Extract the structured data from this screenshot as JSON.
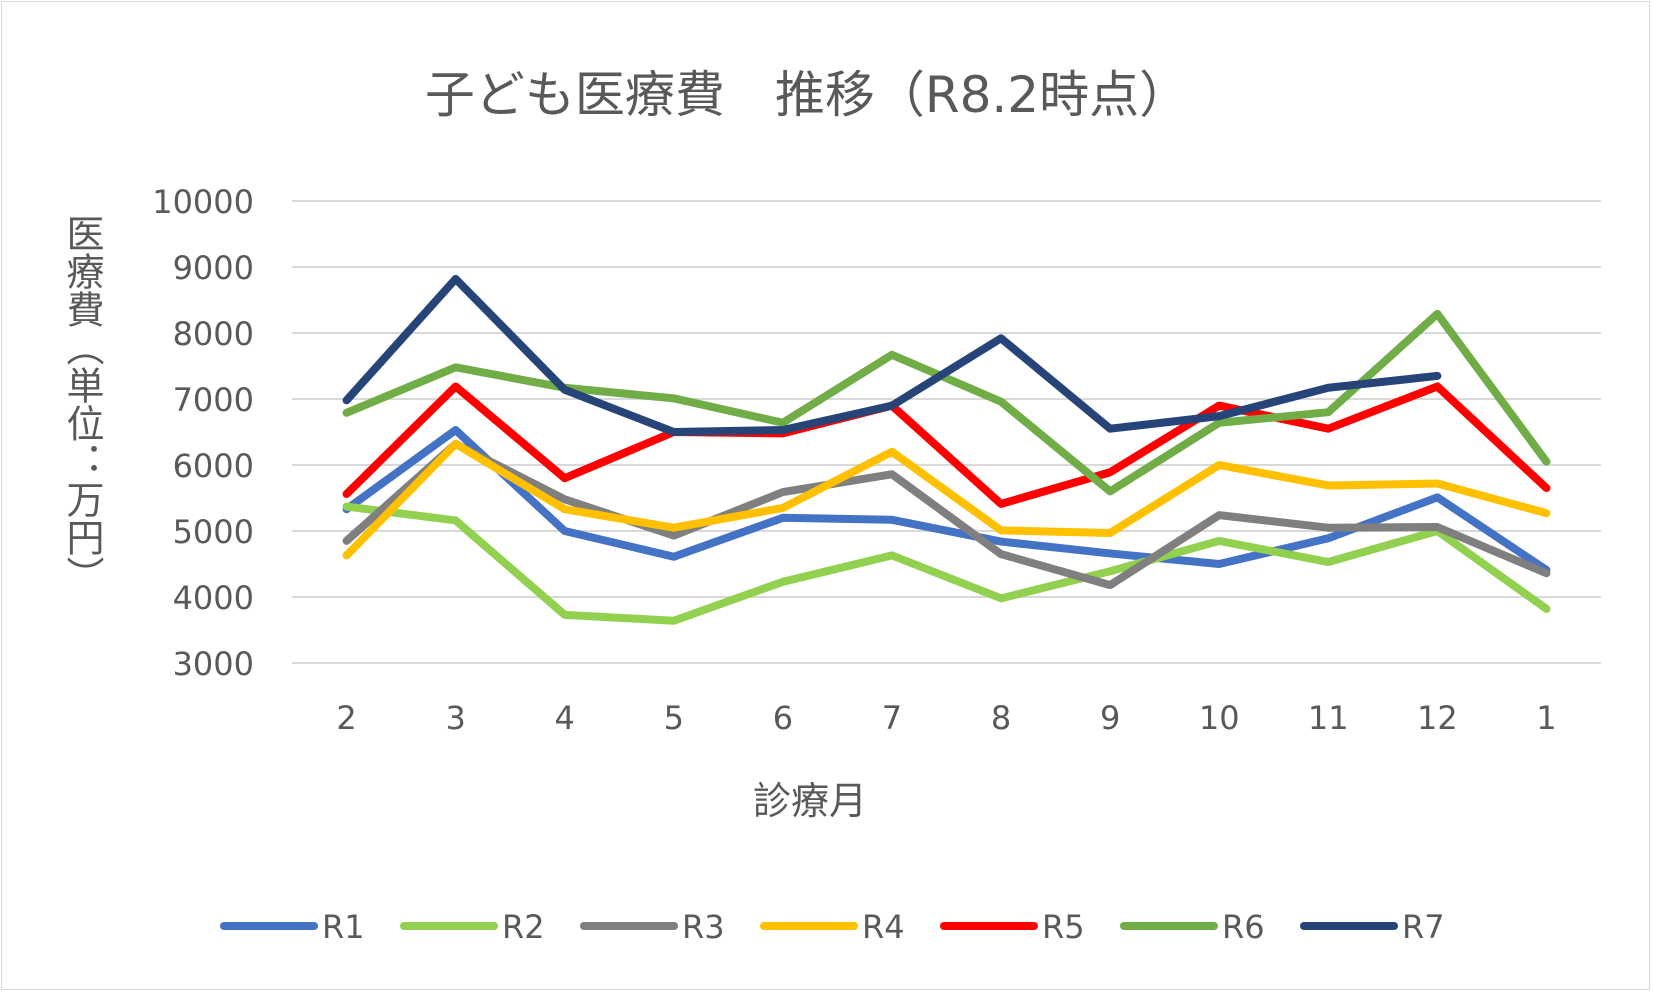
{
  "chart_data": {
    "type": "line",
    "title": "子ども医療費　推移（R8.2時点）",
    "xlabel": "診療月",
    "ylabel": "医療費（単位：万円）",
    "categories": [
      "2",
      "3",
      "4",
      "5",
      "6",
      "7",
      "8",
      "9",
      "10",
      "11",
      "12",
      "1"
    ],
    "ylim": [
      3000,
      10000
    ],
    "yticks": [
      "10000",
      "9000",
      "8000",
      "7000",
      "6000",
      "5000",
      "4000",
      "3000"
    ],
    "grid": true,
    "legend_position": "bottom",
    "series": [
      {
        "name": "R1",
        "color": "#4472C4",
        "values": [
          5330,
          6530,
          5000,
          4610,
          5200,
          5170,
          4840,
          4660,
          4500,
          4890,
          5510,
          4410
        ]
      },
      {
        "name": "R2",
        "color": "#92D050",
        "values": [
          5370,
          5160,
          3730,
          3640,
          4230,
          4630,
          3980,
          4390,
          4850,
          4530,
          5000,
          3820
        ]
      },
      {
        "name": "R3",
        "color": "#7F7F7F",
        "values": [
          4850,
          6320,
          5480,
          4930,
          5590,
          5860,
          4650,
          4180,
          5240,
          5050,
          5060,
          4360
        ]
      },
      {
        "name": "R4",
        "color": "#FFC000",
        "values": [
          4630,
          6320,
          5330,
          5050,
          5350,
          6200,
          5010,
          4970,
          6000,
          5690,
          5720,
          5270
        ]
      },
      {
        "name": "R5",
        "color": "#FF0000",
        "values": [
          5560,
          7190,
          5800,
          6500,
          6480,
          6900,
          5410,
          5890,
          6900,
          6550,
          7190,
          5650
        ]
      },
      {
        "name": "R6",
        "color": "#70AD47",
        "values": [
          6790,
          7480,
          7170,
          7010,
          6640,
          7670,
          6960,
          5600,
          6640,
          6800,
          8290,
          6050
        ]
      },
      {
        "name": "R7",
        "color": "#264478",
        "values": [
          6980,
          8820,
          7140,
          6500,
          6530,
          6900,
          7920,
          6550,
          6740,
          7170,
          7350,
          null
        ]
      }
    ]
  }
}
